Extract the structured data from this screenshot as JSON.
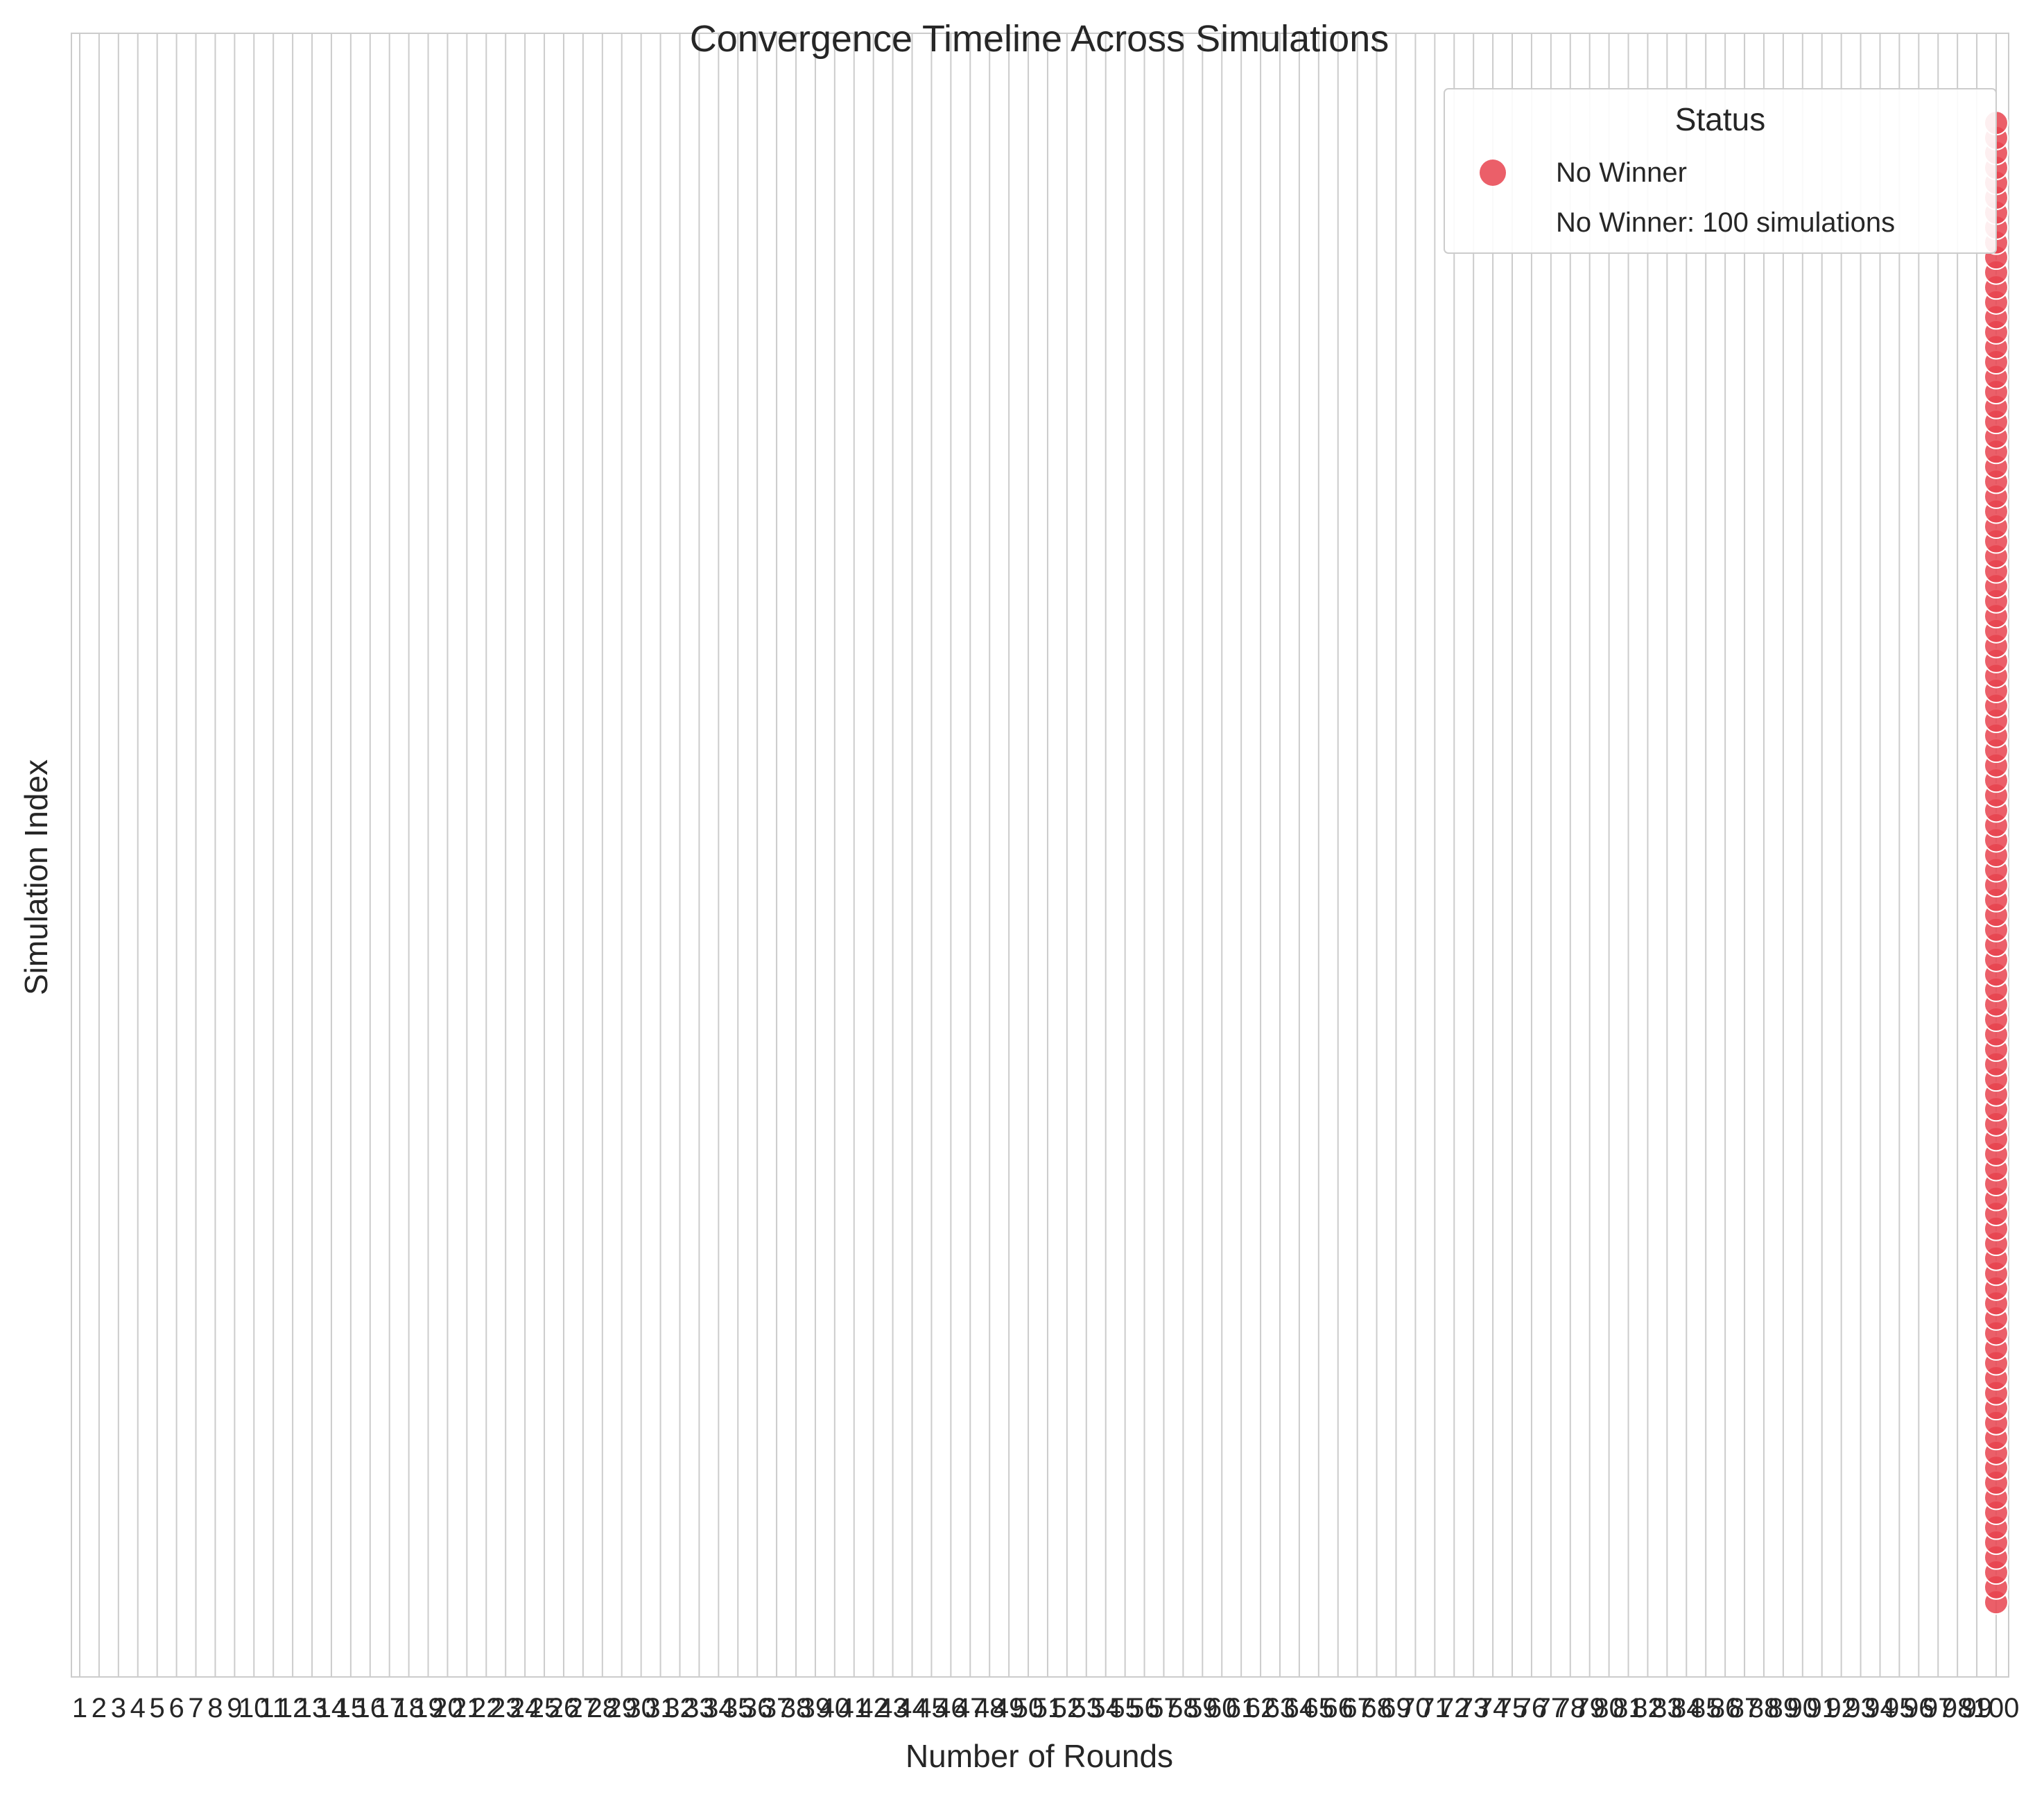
{
  "chart_data": {
    "type": "scatter",
    "title": "Convergence Timeline Across Simulations",
    "xlabel": "Number of Rounds",
    "ylabel": "Simulation Index",
    "x_ticks": [
      "1",
      "2",
      "3",
      "4",
      "5",
      "6",
      "7",
      "8",
      "9",
      "10",
      "11",
      "12",
      "13",
      "14",
      "15",
      "16",
      "17",
      "18",
      "19",
      "20",
      "21",
      "22",
      "23",
      "24",
      "25",
      "26",
      "27",
      "28",
      "29",
      "30",
      "31",
      "32",
      "33",
      "34",
      "35",
      "36",
      "37",
      "38",
      "39",
      "40",
      "41",
      "42",
      "43",
      "44",
      "45",
      "46",
      "47",
      "48",
      "49",
      "50",
      "51",
      "52",
      "53",
      "54",
      "55",
      "56",
      "57",
      "58",
      "59",
      "60",
      "61",
      "62",
      "63",
      "64",
      "65",
      "66",
      "67",
      "68",
      "69",
      "70",
      "71",
      "72",
      "73",
      "74",
      "75",
      "76",
      "77",
      "78",
      "79",
      "80",
      "81",
      "82",
      "83",
      "84",
      "85",
      "86",
      "87",
      "88",
      "89",
      "90",
      "91",
      "92",
      "93",
      "94",
      "95",
      "96",
      "97",
      "98",
      "99",
      "100"
    ],
    "xlim": [
      1,
      100
    ],
    "ylim": [
      -5,
      105
    ],
    "grid": true,
    "y_ticks_shown": false,
    "series": [
      {
        "name": "No Winner",
        "color": "#e8434f",
        "x_value": 100,
        "count": 100
      }
    ],
    "legend": {
      "title": "Status",
      "placement": "top-right",
      "entries": [
        "No Winner",
        "No Winner: 100 simulations"
      ]
    }
  },
  "colors": {
    "grid": "#cccccc",
    "axes": "#cccccc",
    "text": "#262626",
    "marker": "#e8434f",
    "marker_edge": "#ffffff"
  }
}
